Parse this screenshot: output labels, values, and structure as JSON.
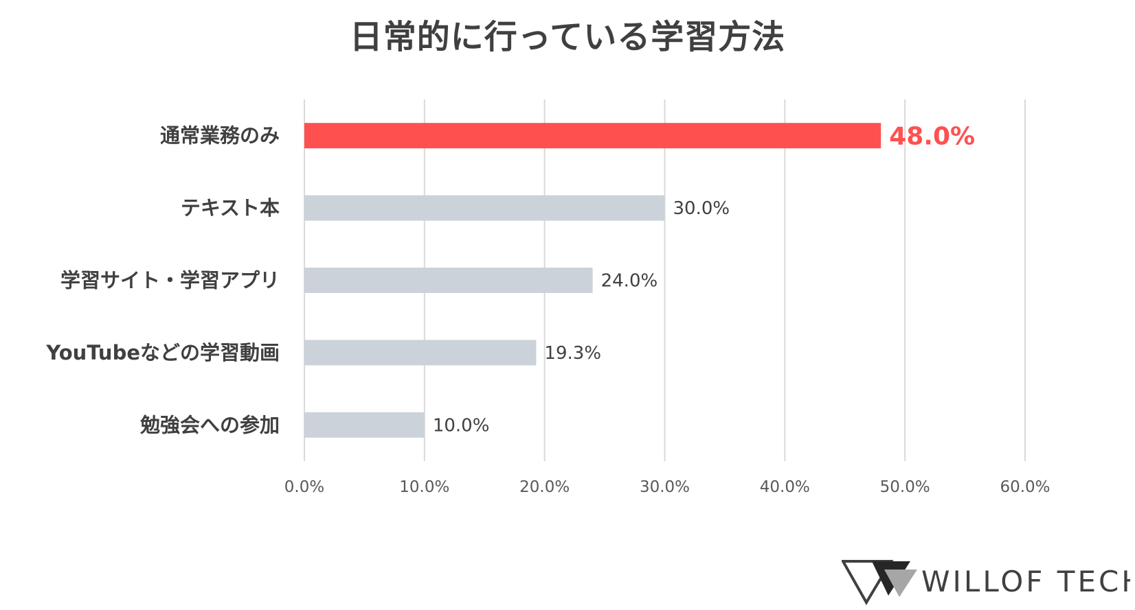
{
  "chart_data": {
    "type": "bar",
    "orientation": "horizontal",
    "title": "日常的に行っている学習方法",
    "categories": [
      "通常業務のみ",
      "テキスト本",
      "学習サイト・学習アプリ",
      "YouTubeなどの学習動画",
      "勉強会への参加"
    ],
    "values": [
      48.0,
      30.0,
      24.0,
      19.3,
      10.0
    ],
    "value_labels": [
      "48.0%",
      "30.0%",
      "24.0%",
      "19.3%",
      "10.0%"
    ],
    "highlight_index": 0,
    "xlim": [
      0,
      60
    ],
    "xticks": [
      0,
      10,
      20,
      30,
      40,
      50,
      60
    ],
    "xtick_labels": [
      "0.0%",
      "10.0%",
      "20.0%",
      "30.0%",
      "40.0%",
      "50.0%",
      "60.0%"
    ],
    "grid": true,
    "colors": {
      "highlight": "#ff5050",
      "bar": "#ccd2d9",
      "grid": "#d9d9d9",
      "text": "#404040"
    }
  },
  "logo": {
    "text": "WILLOF TECH"
  }
}
